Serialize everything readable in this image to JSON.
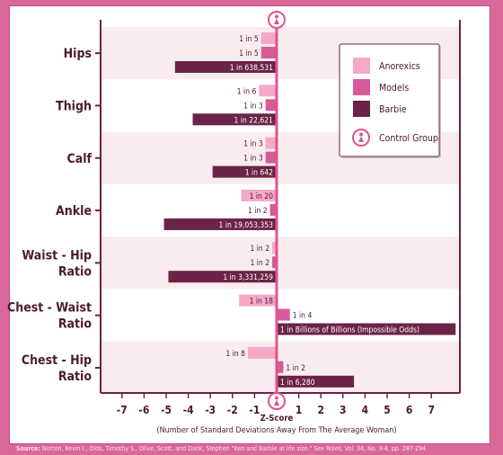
{
  "chart_data": {
    "type": "bar",
    "orientation": "horizontal",
    "categories": [
      "Hips",
      "Thigh",
      "Calf",
      "Ankle",
      "Waist - Hip Ratio",
      "Chest - Waist Ratio",
      "Chest - Hip Ratio"
    ],
    "category_lines": [
      [
        "Hips"
      ],
      [
        "Thigh"
      ],
      [
        "Calf"
      ],
      [
        "Ankle"
      ],
      [
        "Waist - Hip",
        "Ratio"
      ],
      [
        "Chest - Waist",
        "Ratio"
      ],
      [
        "Chest - Hip",
        "Ratio"
      ]
    ],
    "series": [
      {
        "name": "Anorexics",
        "color": "#f5a8c8",
        "values": [
          -0.7,
          -0.8,
          -0.5,
          -1.6,
          -0.2,
          -1.7,
          -1.3
        ],
        "labels": [
          "1 in 5",
          "1 in 6",
          "1 in 3",
          "1 in 20",
          "1 in 2",
          "1 in 18",
          "1 in 8"
        ]
      },
      {
        "name": "Models",
        "color": "#d65a99",
        "values": [
          -0.7,
          -0.5,
          -0.5,
          -0.3,
          -0.2,
          0.6,
          0.3
        ],
        "labels": [
          "1 in 5",
          "1 in 3",
          "1 in 3",
          "1 in 2",
          "1 in 2",
          "1 in 4",
          "1 in 2"
        ]
      },
      {
        "name": "Barbie",
        "color": "#6b2347",
        "values": [
          -4.6,
          -3.8,
          -2.9,
          -5.1,
          -4.9,
          8.1,
          3.5
        ],
        "labels": [
          "1 in 638,531",
          "1 in 22,621",
          "1 in 642",
          "1 in 19,053,353",
          "1 in 3,331,259",
          "1 in Billions of Billions (Impossible Odds)",
          "1 in 6,280"
        ]
      }
    ],
    "xlim": [
      -7.5,
      8.2
    ],
    "xticks": [
      -7,
      -6,
      -5,
      -4,
      -3,
      -2,
      -1,
      0,
      1,
      2,
      3,
      4,
      5,
      6,
      7
    ],
    "xtick_labels": [
      "-7",
      "-6",
      "-5",
      "-4",
      "-3",
      "-2",
      "-1",
      "",
      "1",
      "2",
      "3",
      "4",
      "5",
      "6",
      "7"
    ],
    "xlabel": "Z-Score",
    "xlabel_sub": "(Number of Standard Deviations Away From The Average Woman)",
    "legend": {
      "position": "top-right",
      "control_label": "Control Group"
    },
    "colors": {
      "zero_line": "#e0548f",
      "axis": "#6b2347",
      "band": "#f8ecef",
      "text": "#4a1a33"
    }
  },
  "source": {
    "label": "Source:",
    "text": "Norton, Kevin I., Olds, Timothy S., Olive, Scott, and Dank, Stephen \"Ken and Barbie at life size.\" Sex Roles, Vol. 34, No. 3-4, pp. 287-294"
  }
}
